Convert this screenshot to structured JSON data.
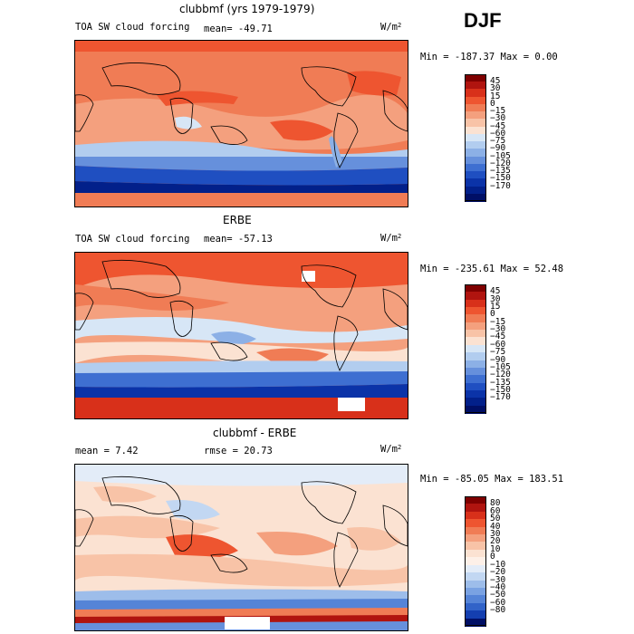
{
  "season": "DJF",
  "panels": [
    {
      "title": "clubbmf (yrs 1979-1979)",
      "left_label": "TOA SW cloud forcing",
      "mean_label": "mean=  -49.71",
      "units": "W/m",
      "units_exp": "2",
      "minmax": "Min = -187.37 Max =    0.00",
      "colorbar": {
        "colors": [
          "#7f0000",
          "#b0140f",
          "#d8301a",
          "#ee5530",
          "#f07c55",
          "#f4a07e",
          "#f8c3a7",
          "#fbe2d2",
          "#d7e6f6",
          "#b2cdef",
          "#8cb0e6",
          "#6690dc",
          "#3e6fd1",
          "#1f4fc1",
          "#0b33a8",
          "#02208a",
          "#000f66"
        ],
        "labels": [
          "45",
          "30",
          "15",
          "0",
          "−15",
          "−30",
          "−45",
          "−60",
          "−75",
          "−90",
          "−105",
          "−120",
          "−135",
          "−150",
          "−170"
        ]
      }
    },
    {
      "title": "ERBE",
      "left_label": "TOA SW cloud forcing",
      "mean_label": "mean=  -57.13",
      "units": "W/m",
      "units_exp": "2",
      "minmax": "Min = -235.61 Max =  52.48",
      "colorbar": {
        "colors": [
          "#7f0000",
          "#b0140f",
          "#d8301a",
          "#ee5530",
          "#f07c55",
          "#f4a07e",
          "#f8c3a7",
          "#fbe2d2",
          "#d7e6f6",
          "#b2cdef",
          "#8cb0e6",
          "#6690dc",
          "#3e6fd1",
          "#1f4fc1",
          "#0b33a8",
          "#02208a",
          "#000f66"
        ],
        "labels": [
          "45",
          "30",
          "15",
          "0",
          "−15",
          "−30",
          "−45",
          "−60",
          "−75",
          "−90",
          "−105",
          "−120",
          "−135",
          "−150",
          "−170"
        ]
      }
    },
    {
      "title": "clubbmf - ERBE",
      "left_label": "mean =    7.42",
      "mean_label": "rmse =   20.73",
      "units": "W/m",
      "units_exp": "2",
      "minmax": "Min = -85.05 Max = 183.51",
      "colorbar": {
        "colors": [
          "#7f0000",
          "#b0140f",
          "#d8301a",
          "#ee5530",
          "#f07c55",
          "#f4a07e",
          "#f8c3a7",
          "#fbe2d2",
          "#fdf0e8",
          "#e3ecf8",
          "#c2d7f2",
          "#9dbdea",
          "#7aa2e2",
          "#5584d7",
          "#3163c8",
          "#143fb0",
          "#000f66"
        ],
        "labels": [
          "80",
          "60",
          "50",
          "40",
          "30",
          "20",
          "10",
          "0",
          "−10",
          "−20",
          "−30",
          "−40",
          "−50",
          "−60",
          "−80"
        ]
      }
    }
  ]
}
